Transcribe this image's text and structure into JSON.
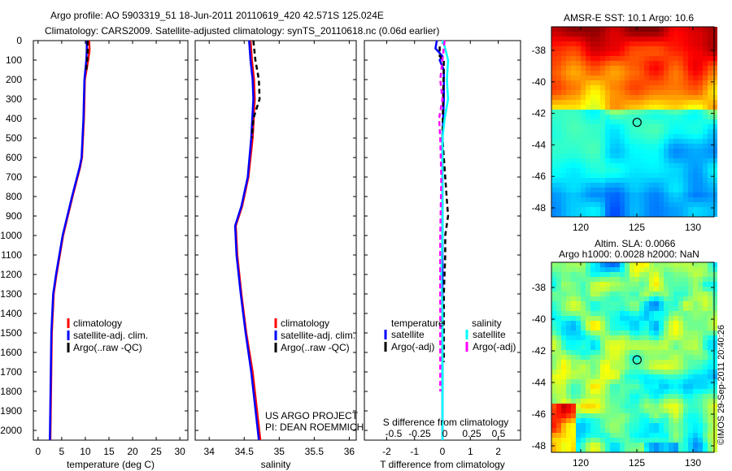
{
  "title": {
    "line1": "Argo profile: AO 5903319_51 18-Jun-2011 20110619_420 42.571S 125.024E",
    "line2": "Climatology: CARS2009. Satellite-adjusted climatology: synTS_20110618.nc (0.06d earlier)"
  },
  "colors": {
    "climatology": "#ff0000",
    "satellite": "#0000ff",
    "argo": "#000000",
    "sal_satellite": "#00ffff",
    "sal_argo": "#ff00ff"
  },
  "chart_data": [
    {
      "type": "line",
      "xlabel": "temperature (deg C)",
      "ylabel": "",
      "xlim": [
        -1,
        31.7
      ],
      "ylim": [
        2050,
        0
      ],
      "xticks": [
        0,
        5,
        10,
        15,
        20,
        25,
        30
      ],
      "yticks": [
        0,
        100,
        200,
        300,
        400,
        500,
        600,
        700,
        800,
        900,
        1000,
        1100,
        1200,
        1300,
        1400,
        1500,
        1600,
        1700,
        1800,
        1900,
        2000
      ],
      "legend": [
        "climatology",
        "satellite-adj. clim.",
        "Argo(..raw -QC)"
      ],
      "series": [
        {
          "name": "climatology",
          "depth": [
            0,
            50,
            100,
            200,
            400,
            600,
            650,
            800,
            1000,
            1200,
            1300,
            1500,
            2050
          ],
          "values": [
            10.8,
            10.9,
            10.6,
            9.9,
            9.7,
            9.3,
            8.9,
            7.3,
            5.3,
            3.9,
            3.3,
            2.9,
            2.6
          ]
        },
        {
          "name": "satellite-adj. clim.",
          "depth": [
            0,
            50,
            100,
            200,
            400,
            600,
            650,
            800,
            1000,
            1200,
            1300,
            1500,
            2050
          ],
          "values": [
            10.3,
            10.3,
            10.2,
            9.8,
            9.6,
            9.2,
            8.8,
            7.2,
            5.2,
            3.8,
            3.2,
            2.8,
            2.5
          ]
        },
        {
          "name": "Argo(..raw -QC)",
          "depth": [
            0,
            50,
            100,
            150
          ],
          "values": [
            10.5,
            10.5,
            10.4,
            10.2
          ]
        }
      ]
    },
    {
      "type": "line",
      "xlabel": "salinity",
      "xlim": [
        33.8,
        36.1
      ],
      "ylim": [
        2050,
        0
      ],
      "xticks": [
        34,
        34.5,
        35,
        35.5,
        36
      ],
      "legend": [
        "climatology",
        "satellite-adj. clim.",
        "Argo(..raw -QC)"
      ],
      "annotation": [
        "US ARGO PROJECT",
        "PI: DEAN ROEMMICH"
      ],
      "series": [
        {
          "name": "climatology",
          "depth": [
            0,
            100,
            200,
            300,
            500,
            700,
            850,
            950,
            1100,
            1300,
            1500,
            1700,
            2050
          ],
          "values": [
            34.59,
            34.61,
            34.64,
            34.65,
            34.62,
            34.56,
            34.47,
            34.38,
            34.4,
            34.46,
            34.53,
            34.62,
            34.73
          ]
        },
        {
          "name": "satellite-adj. clim.",
          "depth": [
            0,
            100,
            200,
            300,
            500,
            700,
            850,
            950,
            1100,
            1300,
            1500,
            1700,
            2050
          ],
          "values": [
            34.57,
            34.59,
            34.62,
            34.63,
            34.6,
            34.55,
            34.46,
            34.37,
            34.39,
            34.45,
            34.52,
            34.6,
            34.71
          ]
        },
        {
          "name": "Argo(..raw -QC)",
          "depth": [
            0,
            100,
            200,
            300,
            400,
            500
          ],
          "values": [
            34.63,
            34.66,
            34.71,
            34.72,
            34.63,
            34.61
          ]
        }
      ]
    },
    {
      "type": "line",
      "xlabel": "T difference from climatology",
      "x2label": "S difference from climatology",
      "xlim": [
        -2.8,
        2.8
      ],
      "x2lim": [
        -0.7,
        0.7
      ],
      "ylim": [
        2050,
        0
      ],
      "xticks": [
        -2,
        -1,
        0,
        1,
        2
      ],
      "x2ticks": [
        "-0.5",
        "-0.25",
        "0",
        "0.25",
        "0.5"
      ],
      "legend_t": {
        "title": "temperature",
        "items": [
          "satellite",
          "Argo(-adj)"
        ]
      },
      "legend_s": {
        "title": "salinity",
        "items": [
          "satellite",
          "Argo(-adj)"
        ]
      },
      "series": [
        {
          "name": "T satellite",
          "depth": [
            0,
            40,
            80,
            100,
            150,
            300,
            500,
            700,
            1000,
            1500,
            2050
          ],
          "values": [
            -0.2,
            -0.25,
            0.0,
            -0.1,
            0.05,
            0.05,
            0.0,
            0.0,
            0.0,
            0.0,
            0.0
          ]
        },
        {
          "name": "T Argo(-adj)",
          "depth": [
            30,
            80,
            100,
            500,
            700,
            800,
            900,
            1000,
            1100,
            1300,
            1500,
            1650
          ],
          "values": [
            -0.1,
            -0.1,
            0.05,
            0.0,
            0.1,
            0.15,
            0.2,
            0.1,
            0.1,
            0.05,
            0.05,
            0.05
          ]
        },
        {
          "name": "S satellite",
          "depth": [
            0,
            30,
            100,
            200,
            300,
            400,
            500,
            700,
            1000,
            1200,
            1400,
            2050
          ],
          "values": [
            0.0,
            0.02,
            0.05,
            0.04,
            0.05,
            0.02,
            0.0,
            0.0,
            0.0,
            -0.01,
            0.0,
            0.0
          ]
        },
        {
          "name": "S Argo(-adj)",
          "depth": [
            0,
            100,
            200,
            300,
            400,
            500,
            700,
            1000,
            1500,
            1800
          ],
          "values": [
            0.02,
            0.0,
            -0.02,
            0.0,
            -0.03,
            -0.02,
            -0.01,
            -0.02,
            -0.02,
            -0.02
          ]
        }
      ]
    }
  ],
  "maps": [
    {
      "title": "AMSR-E SST: 10.1  Argo: 10.6",
      "type": "heatmap",
      "xticks": [
        120,
        125,
        130
      ],
      "yticks": [
        -38,
        -40,
        -42,
        -44,
        -46,
        -48
      ],
      "marker": [
        125.024,
        -42.571
      ]
    },
    {
      "title1": "Altim. SLA: 0.0066",
      "title2": "Argo h1000: 0.0028 h2000: NaN",
      "type": "heatmap",
      "xticks": [
        120,
        125,
        130
      ],
      "yticks": [
        -38,
        -40,
        -42,
        -44,
        -46,
        -48
      ],
      "marker": [
        125.024,
        -42.571
      ]
    }
  ],
  "stamp": "©IMOS 29-Sep-2011 20:40:26"
}
